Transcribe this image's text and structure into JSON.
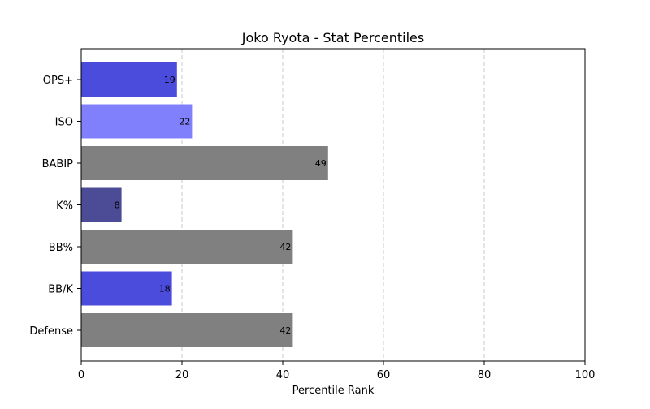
{
  "chart_data": {
    "type": "bar",
    "orientation": "horizontal",
    "title": "Joko Ryota - Stat Percentiles",
    "xlabel": "Percentile Rank",
    "ylabel": "",
    "xlim": [
      0,
      100
    ],
    "xticks": [
      "0",
      "20",
      "40",
      "60",
      "80",
      "100"
    ],
    "grid": "x-dashed",
    "categories": [
      "OPS+",
      "ISO",
      "BABIP",
      "K%",
      "BB%",
      "BB/K",
      "Defense"
    ],
    "values": [
      19,
      22,
      49,
      8,
      42,
      18,
      42
    ],
    "value_labels": [
      "19",
      "22",
      "49",
      "8",
      "42",
      "18",
      "42"
    ],
    "colors": [
      "#4b4bdc",
      "#8080fc",
      "#808080",
      "#4b4b96",
      "#808080",
      "#4b4bdc",
      "#808080"
    ]
  }
}
